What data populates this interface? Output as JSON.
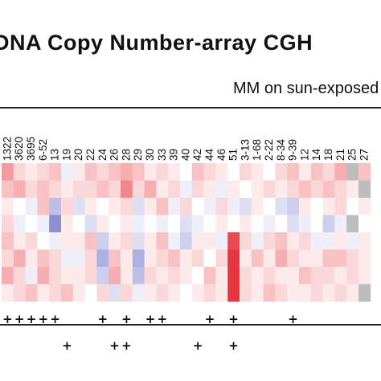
{
  "header": {
    "title": "DNA Copy Number-array CGH",
    "subtitle": "MM on sun-exposed"
  },
  "chart_data": {
    "type": "heatmap",
    "title": "DNA Copy Number-array CGH",
    "subtitle": "MM on sun-exposed",
    "columns": [
      "1322",
      "3620",
      "3695",
      "6-52",
      "13",
      "19",
      "20",
      "22",
      "24",
      "26",
      "28",
      "29",
      "30",
      "33",
      "39",
      "40",
      "42",
      "44",
      "46",
      "51",
      "3-13",
      "1-68",
      "2-22",
      "8-34",
      "9-39",
      "12",
      "14",
      "18",
      "21",
      "25",
      "27"
    ],
    "color_scale": {
      "loss": "#5a60c0",
      "neutral": "#ffffff",
      "gain": "#e8353f",
      "missing": "#bdbdbd"
    },
    "values": [
      [
        0.5,
        0.2,
        0.1,
        0.2,
        0.3,
        -0.1,
        0.1,
        0.3,
        0.2,
        0.3,
        0.4,
        0.3,
        0.1,
        0.2,
        0.1,
        0.0,
        0.3,
        0.2,
        0.1,
        0.0,
        0.2,
        0.1,
        0.0,
        0.2,
        0.3,
        0.1,
        0.3,
        0.2,
        0.4,
        "NA",
        0.3
      ],
      [
        0.3,
        0.4,
        0.2,
        0.3,
        0.2,
        0.1,
        0.2,
        0.2,
        0.3,
        0.2,
        0.6,
        0.2,
        0.4,
        0.1,
        0.2,
        -0.1,
        0.2,
        0.1,
        -0.1,
        0.1,
        0.0,
        0.1,
        0.2,
        0.1,
        0.2,
        0.3,
        0.2,
        0.3,
        0.2,
        0.1,
        "NA"
      ],
      [
        0.1,
        0.0,
        -0.1,
        0.3,
        -0.4,
        0.2,
        -0.2,
        0.1,
        0.0,
        0.1,
        0.2,
        -0.2,
        0.1,
        0.3,
        -0.1,
        0.2,
        0.0,
        -0.1,
        0.2,
        -0.1,
        -0.2,
        0.1,
        0.0,
        -0.2,
        -0.3,
        0.1,
        0.0,
        0.1,
        0.2,
        0.0,
        0.1
      ],
      [
        0.2,
        -0.1,
        0.0,
        -0.1,
        -0.7,
        0.1,
        0.0,
        -0.2,
        0.1,
        0.0,
        0.1,
        -0.1,
        0.0,
        -0.1,
        0.0,
        -0.2,
        -0.1,
        0.0,
        0.1,
        0.0,
        0.1,
        0.0,
        -0.1,
        0.0,
        -0.2,
        -0.1,
        0.0,
        -0.3,
        -0.1,
        "NA",
        0.0
      ],
      [
        0.3,
        0.1,
        0.2,
        0.0,
        -0.1,
        0.1,
        0.1,
        0.3,
        -0.3,
        0.1,
        0.2,
        -0.2,
        0.1,
        0.3,
        -0.1,
        -0.3,
        0.1,
        0.1,
        -0.1,
        0.9,
        0.2,
        -0.1,
        0.2,
        0.3,
        0.1,
        0.2,
        -0.1,
        -0.1,
        0.1,
        -0.1,
        0.1
      ],
      [
        0.2,
        0.4,
        0.1,
        0.3,
        0.2,
        -0.1,
        -0.1,
        0.2,
        -0.5,
        0.3,
        0.1,
        -0.5,
        0.1,
        0.2,
        0.3,
        0.1,
        0.2,
        0.0,
        0.2,
        1.0,
        0.1,
        0.3,
        0.1,
        0.4,
        0.2,
        0.1,
        0.1,
        0.3,
        0.3,
        0.2,
        0.1
      ],
      [
        0.4,
        0.2,
        -0.1,
        0.4,
        0.2,
        0.1,
        0.1,
        0.2,
        -0.3,
        0.4,
        0.1,
        -0.4,
        0.2,
        0.1,
        0.2,
        0.1,
        0.0,
        0.3,
        0.1,
        1.0,
        0.2,
        0.1,
        0.2,
        0.1,
        0.1,
        0.3,
        0.2,
        0.2,
        0.1,
        0.2,
        0.1
      ],
      [
        0.1,
        0.2,
        0.3,
        0.1,
        0.2,
        0.3,
        0.1,
        0.0,
        0.2,
        -0.2,
        0.2,
        -0.1,
        0.1,
        0.2,
        0.1,
        0.0,
        0.1,
        0.2,
        0.1,
        1.0,
        0.2,
        0.1,
        0.3,
        0.2,
        0.1,
        0.1,
        0.2,
        0.1,
        0.2,
        0.1,
        "NA"
      ]
    ],
    "marker_rows": [
      [
        1,
        1,
        1,
        1,
        1,
        0,
        0,
        0,
        1,
        0,
        1,
        0,
        1,
        1,
        0,
        0,
        0,
        1,
        0,
        1,
        0,
        0,
        0,
        0,
        1,
        0,
        0,
        0,
        0,
        0,
        0
      ],
      [
        0,
        0,
        0,
        0,
        0,
        1,
        0,
        0,
        0,
        1,
        1,
        0,
        0,
        0,
        0,
        0,
        1,
        0,
        0,
        1,
        0,
        0,
        0,
        0,
        0,
        0,
        0,
        0,
        0,
        0,
        0
      ]
    ],
    "marker_symbol": "+"
  }
}
